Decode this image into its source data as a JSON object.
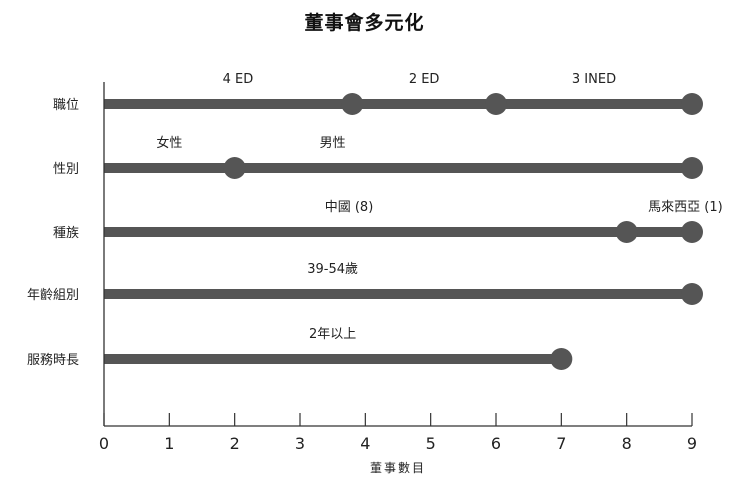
{
  "chart_data": {
    "type": "dot-range",
    "title": "董事會多元化",
    "xlabel": "董事數目",
    "ylabel": "",
    "xlim": [
      0,
      9
    ],
    "xticks": [
      "0",
      "1",
      "2",
      "3",
      "4",
      "5",
      "6",
      "7",
      "8",
      "9"
    ],
    "grid": false,
    "bar_color": "#555555",
    "categories": [
      {
        "name": "職位",
        "value": 9,
        "points": [
          3.8,
          6,
          9
        ],
        "labels": [
          {
            "text": "4 ED",
            "x": 2.05
          },
          {
            "text": "2 ED",
            "x": 4.9
          },
          {
            "text": "3 INED",
            "x": 7.5
          }
        ]
      },
      {
        "name": "性別",
        "value": 9,
        "points": [
          2,
          9
        ],
        "labels": [
          {
            "text": "女性",
            "x": 1.0
          },
          {
            "text": "男性",
            "x": 3.5
          }
        ]
      },
      {
        "name": "種族",
        "value": 9,
        "points": [
          8,
          9
        ],
        "labels": [
          {
            "text": "中國 (8)",
            "x": 3.75
          },
          {
            "text": "馬來西亞 (1)",
            "x": 8.9
          }
        ]
      },
      {
        "name": "年齡組別",
        "value": 9,
        "points": [
          9
        ],
        "labels": [
          {
            "text": "39-54歲",
            "x": 3.5
          }
        ]
      },
      {
        "name": "服務時長",
        "value": 7,
        "points": [
          7
        ],
        "labels": [
          {
            "text": "2年以上",
            "x": 3.5
          }
        ]
      }
    ]
  }
}
